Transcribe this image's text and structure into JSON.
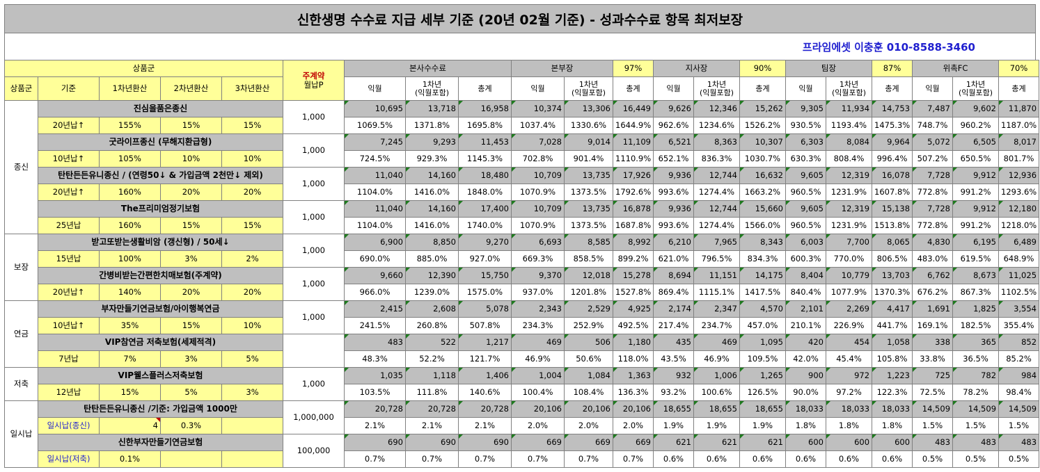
{
  "title": "신한생명 수수료 지급 세부 기준 (20년 02월 기준) - 성과수수료 항목 최저보장",
  "contact": "프라임에셋 이충훈 010-8588-3460",
  "header": {
    "product_group_header": "상품군",
    "monthly_premium_label_1": "주계약",
    "monthly_premium_label_2": "월납P",
    "groups": [
      {
        "name": "본사수수료",
        "pct": ""
      },
      {
        "name": "본부장",
        "pct": "97%"
      },
      {
        "name": "지사장",
        "pct": "90%"
      },
      {
        "name": "팀장",
        "pct": "87%"
      },
      {
        "name": "위촉FC",
        "pct": "70%"
      }
    ],
    "left_sub": [
      "상품군",
      "기준",
      "1차년환산",
      "2차년환산",
      "3차년환산"
    ],
    "sub_cols": [
      "익월",
      "1차년\n(익월포함)",
      "총계"
    ]
  },
  "categories": [
    {
      "name": "종신",
      "rows": 4
    },
    {
      "name": "보장",
      "rows": 2
    },
    {
      "name": "연금",
      "rows": 2
    },
    {
      "name": "저축",
      "rows": 1
    },
    {
      "name": "일시납",
      "rows": 2
    }
  ],
  "products": [
    {
      "name": "진심을품은종신",
      "basis": "20년납↑",
      "y1": "155%",
      "y2": "15%",
      "y3": "15%",
      "prem": "1,000",
      "amounts": [
        "10,695",
        "13,718",
        "16,958",
        "10,374",
        "13,306",
        "16,449",
        "9,626",
        "12,346",
        "15,262",
        "9,305",
        "11,934",
        "14,753",
        "7,487",
        "9,602",
        "11,870"
      ],
      "pcts": [
        "1069.5%",
        "1371.8%",
        "1695.8%",
        "1037.4%",
        "1330.6%",
        "1644.9%",
        "962.6%",
        "1234.6%",
        "1526.2%",
        "930.5%",
        "1193.4%",
        "1475.3%",
        "748.7%",
        "960.2%",
        "1187.0%"
      ]
    },
    {
      "name": "굿라이프종신 (무해지환급형)",
      "basis": "10년납↑",
      "y1": "105%",
      "y2": "10%",
      "y3": "10%",
      "prem": "1,000",
      "amounts": [
        "7,245",
        "9,293",
        "11,453",
        "7,028",
        "9,014",
        "11,109",
        "6,521",
        "8,363",
        "10,307",
        "6,303",
        "8,084",
        "9,964",
        "5,072",
        "6,505",
        "8,017"
      ],
      "pcts": [
        "724.5%",
        "929.3%",
        "1145.3%",
        "702.8%",
        "901.4%",
        "1110.9%",
        "652.1%",
        "836.3%",
        "1030.7%",
        "630.3%",
        "808.4%",
        "996.4%",
        "507.2%",
        "650.5%",
        "801.7%"
      ]
    },
    {
      "name": "탄탄든든유니종신 / (연령50↓ & 가입금액 2천만↓ 제외)",
      "basis": "20년납↑",
      "y1": "160%",
      "y2": "20%",
      "y3": "20%",
      "prem": "1,000",
      "amounts": [
        "11,040",
        "14,160",
        "18,480",
        "10,709",
        "13,735",
        "17,926",
        "9,936",
        "12,744",
        "16,632",
        "9,605",
        "12,319",
        "16,078",
        "7,728",
        "9,912",
        "12,936"
      ],
      "pcts": [
        "1104.0%",
        "1416.0%",
        "1848.0%",
        "1070.9%",
        "1373.5%",
        "1792.6%",
        "993.6%",
        "1274.4%",
        "1663.2%",
        "960.5%",
        "1231.9%",
        "1607.8%",
        "772.8%",
        "991.2%",
        "1293.6%"
      ]
    },
    {
      "name": "The프리미엄정기보험",
      "basis": "25년납",
      "y1": "160%",
      "y2": "15%",
      "y3": "15%",
      "prem": "1,000",
      "amounts": [
        "11,040",
        "14,160",
        "17,400",
        "10,709",
        "13,735",
        "16,878",
        "9,936",
        "12,744",
        "15,660",
        "9,605",
        "12,319",
        "15,138",
        "7,728",
        "9,912",
        "12,180"
      ],
      "pcts": [
        "1104.0%",
        "1416.0%",
        "1740.0%",
        "1070.9%",
        "1373.5%",
        "1687.8%",
        "993.6%",
        "1274.4%",
        "1566.0%",
        "960.5%",
        "1231.9%",
        "1513.8%",
        "772.8%",
        "991.2%",
        "1218.0%"
      ]
    },
    {
      "name": "받고또받는생활비암 (갱신형) / 50세↓",
      "basis": "15년납",
      "y1": "100%",
      "y2": "3%",
      "y3": "2%",
      "prem": "1,000",
      "amounts": [
        "6,900",
        "8,850",
        "9,270",
        "6,693",
        "8,585",
        "8,992",
        "6,210",
        "7,965",
        "8,343",
        "6,003",
        "7,700",
        "8,065",
        "4,830",
        "6,195",
        "6,489"
      ],
      "pcts": [
        "690.0%",
        "885.0%",
        "927.0%",
        "669.3%",
        "858.5%",
        "899.2%",
        "621.0%",
        "796.5%",
        "834.3%",
        "600.3%",
        "770.0%",
        "806.5%",
        "483.0%",
        "619.5%",
        "648.9%"
      ]
    },
    {
      "name": "간병비받는간편한치매보험(주계약)",
      "basis": "20년납↑",
      "y1": "140%",
      "y2": "20%",
      "y3": "20%",
      "prem": "1,000",
      "amounts": [
        "9,660",
        "12,390",
        "15,750",
        "9,370",
        "12,018",
        "15,278",
        "8,694",
        "11,151",
        "14,175",
        "8,404",
        "10,779",
        "13,703",
        "6,762",
        "8,673",
        "11,025"
      ],
      "pcts": [
        "966.0%",
        "1239.0%",
        "1575.0%",
        "937.0%",
        "1201.8%",
        "1527.8%",
        "869.4%",
        "1115.1%",
        "1417.5%",
        "840.4%",
        "1077.9%",
        "1370.3%",
        "676.2%",
        "867.3%",
        "1102.5%"
      ]
    },
    {
      "name": "부자만들기연금보험/아이행복연금",
      "basis": "10년납↑",
      "y1": "35%",
      "y2": "15%",
      "y3": "10%",
      "prem": "1,000",
      "amounts": [
        "2,415",
        "2,608",
        "5,078",
        "2,343",
        "2,529",
        "4,925",
        "2,174",
        "2,347",
        "4,570",
        "2,101",
        "2,269",
        "4,417",
        "1,691",
        "1,825",
        "3,554"
      ],
      "pcts": [
        "241.5%",
        "260.8%",
        "507.8%",
        "234.3%",
        "252.9%",
        "492.5%",
        "217.4%",
        "234.7%",
        "457.0%",
        "210.1%",
        "226.9%",
        "441.7%",
        "169.1%",
        "182.5%",
        "355.4%"
      ]
    },
    {
      "name": "VIP참연금 저축보험(세제적격)",
      "basis": "7년납",
      "y1": "7%",
      "y2": "3%",
      "y3": "5%",
      "prem": "",
      "amounts": [
        "483",
        "522",
        "1,217",
        "469",
        "506",
        "1,180",
        "435",
        "469",
        "1,095",
        "420",
        "454",
        "1,058",
        "338",
        "365",
        "852"
      ],
      "pcts": [
        "48.3%",
        "52.2%",
        "121.7%",
        "46.9%",
        "50.6%",
        "118.0%",
        "43.5%",
        "46.9%",
        "109.5%",
        "42.0%",
        "45.4%",
        "105.8%",
        "33.8%",
        "36.5%",
        "85.2%"
      ]
    },
    {
      "name": "VIP웰스플러스저축보험",
      "basis": "12년납",
      "y1": "15%",
      "y2": "5%",
      "y3": "3%",
      "prem": "1,000",
      "amounts": [
        "1,035",
        "1,118",
        "1,406",
        "1,004",
        "1,084",
        "1,363",
        "932",
        "1,006",
        "1,265",
        "900",
        "972",
        "1,223",
        "725",
        "782",
        "984"
      ],
      "pcts": [
        "103.5%",
        "111.8%",
        "140.6%",
        "100.4%",
        "108.4%",
        "136.3%",
        "93.2%",
        "100.6%",
        "126.5%",
        "90.0%",
        "97.2%",
        "122.3%",
        "72.5%",
        "78.2%",
        "98.4%"
      ]
    },
    {
      "name": "탄탄든든유니종신 /기준: 가입금액 1000만",
      "basis": "일시납(종신)",
      "y1": "4",
      "y2": "0.3%",
      "y3": "",
      "prem": "1,000,000",
      "amounts": [
        "20,728",
        "20,728",
        "20,728",
        "20,106",
        "20,106",
        "20,106",
        "18,655",
        "18,655",
        "18,655",
        "18,033",
        "18,033",
        "18,033",
        "14,509",
        "14,509",
        "14,509"
      ],
      "pcts": [
        "2.1%",
        "2.1%",
        "2.1%",
        "2.0%",
        "2.0%",
        "2.0%",
        "1.9%",
        "1.9%",
        "1.9%",
        "1.8%",
        "1.8%",
        "1.8%",
        "1.5%",
        "1.5%",
        "1.5%"
      ]
    },
    {
      "name": "신한부자만들기연금보험",
      "basis": "일시납(저축)",
      "y1": "0.1%",
      "y2": "",
      "y3": "",
      "prem": "100,000",
      "amounts": [
        "690",
        "690",
        "690",
        "669",
        "669",
        "669",
        "621",
        "621",
        "621",
        "600",
        "600",
        "600",
        "483",
        "483",
        "483"
      ],
      "pcts": [
        "0.7%",
        "0.7%",
        "0.7%",
        "0.7%",
        "0.7%",
        "0.7%",
        "0.6%",
        "0.6%",
        "0.6%",
        "0.6%",
        "0.6%",
        "0.6%",
        "0.5%",
        "0.5%",
        "0.5%"
      ]
    }
  ]
}
